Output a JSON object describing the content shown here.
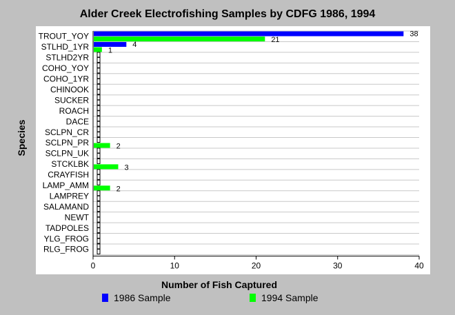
{
  "chart_data": {
    "type": "bar",
    "orientation": "horizontal",
    "title": "Alder Creek Electrofishing Samples by CDFG 1986, 1994",
    "xlabel": "Number of Fish Captured",
    "ylabel": "Species",
    "xlim": [
      0,
      40
    ],
    "xticks": [
      0,
      10,
      20,
      30,
      40
    ],
    "grid": true,
    "legend_position": "bottom",
    "categories": [
      "TROUT_YOY",
      "STLHD_1YR",
      "STLHD2YR",
      "COHO_YOY",
      "COHO_1YR",
      "CHINOOK",
      "SUCKER",
      "ROACH",
      "DACE",
      "SCLPN_CR",
      "SCLPN_PR",
      "SCLPN_UK",
      "STCKLBK",
      "CRAYFISH",
      "LAMP_AMM",
      "LAMPREY",
      "SALAMAND",
      "NEWT",
      "TADPOLES",
      "YLG_FROG",
      "RLG_FROG"
    ],
    "series": [
      {
        "name": "1986 Sample",
        "color": "#0000ff",
        "values": [
          38,
          4,
          0,
          0,
          0,
          0,
          0,
          0,
          0,
          0,
          0,
          0,
          0,
          0,
          0,
          0,
          0,
          0,
          0,
          0,
          0
        ]
      },
      {
        "name": "1994 Sample",
        "color": "#00ff00",
        "values": [
          21,
          1,
          0,
          0,
          0,
          0,
          0,
          0,
          0,
          0,
          2,
          0,
          3,
          0,
          2,
          0,
          0,
          0,
          0,
          0,
          0
        ]
      }
    ]
  }
}
